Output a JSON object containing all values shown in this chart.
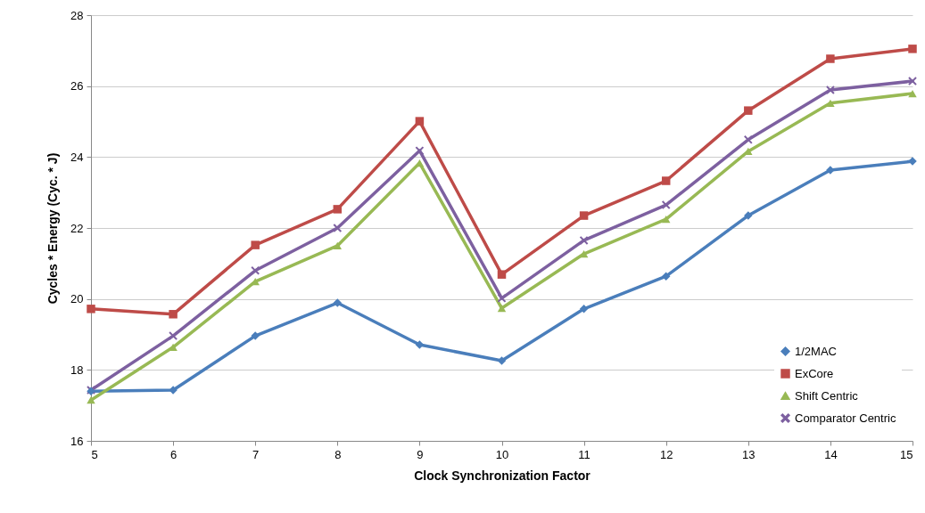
{
  "chart_data": {
    "type": "line",
    "xlabel": "Clock Synchronization Factor",
    "ylabel": "Cycles * Energy (Cyc. * J)",
    "x": [
      5,
      6,
      7,
      8,
      9,
      10,
      11,
      12,
      13,
      14,
      15
    ],
    "xlim": [
      5,
      15
    ],
    "xticks": [
      5,
      6,
      7,
      8,
      9,
      10,
      11,
      12,
      13,
      14,
      15
    ],
    "ylim": [
      16,
      28
    ],
    "yticks": [
      16,
      18,
      20,
      22,
      24,
      26,
      28
    ],
    "grid": "y",
    "legend": "bottom right",
    "line_style": "solid",
    "series": [
      {
        "name": "1/2MAC",
        "color": "#4a7ebb",
        "marker": "diamond",
        "values": [
          17.4,
          17.43,
          18.96,
          19.89,
          18.71,
          18.26,
          19.72,
          20.64,
          22.35,
          23.63,
          23.88
        ]
      },
      {
        "name": "ExCore",
        "color": "#be4b48",
        "marker": "square",
        "values": [
          19.72,
          19.57,
          21.52,
          22.53,
          25.01,
          20.69,
          22.35,
          23.33,
          25.31,
          26.77,
          27.05
        ]
      },
      {
        "name": "Shift Centric",
        "color": "#98b954",
        "marker": "triangle",
        "values": [
          17.15,
          18.64,
          20.49,
          21.5,
          23.83,
          19.74,
          21.27,
          22.25,
          24.16,
          25.52,
          25.79
        ]
      },
      {
        "name": "Comparator Centric",
        "color": "#7d60a0",
        "marker": "cross",
        "values": [
          17.43,
          18.96,
          20.8,
          22.0,
          24.18,
          20.02,
          21.65,
          22.65,
          24.49,
          25.89,
          26.14
        ]
      }
    ]
  }
}
